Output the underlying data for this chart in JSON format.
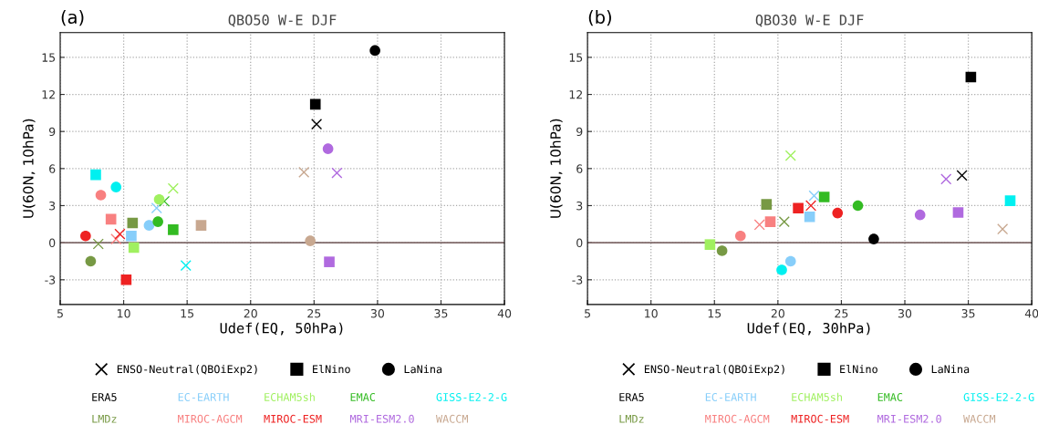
{
  "chart_data": [
    {
      "type": "scatter",
      "title": "QBO50 W-E DJF",
      "xlabel": "Udef(EQ, 50hPa)",
      "ylabel": "U(60N, 10hPa)",
      "annotations": [
        "(a)"
      ],
      "xlim": [
        5,
        40
      ],
      "xticks": [
        5,
        10,
        15,
        20,
        25,
        30,
        35,
        40
      ],
      "ylim": [
        -5,
        17
      ],
      "yticks": [
        -3,
        0,
        3,
        6,
        9,
        12,
        15
      ],
      "grid": true,
      "legend": "bottom",
      "ref_lines": [
        {
          "axis": "y",
          "value": 0,
          "color": "#806a6a"
        }
      ],
      "series": [
        {
          "name": "ENSO-Neutral(QBOiExp2)",
          "marker": "cross",
          "color": "#000000",
          "x": [
            25.2,
            12.6,
            13.9,
            13.2,
            14.9,
            8.0,
            9.4,
            9.7,
            26.8,
            24.2
          ],
          "values": [
            9.6,
            2.8,
            4.4,
            3.35,
            -1.85,
            -0.1,
            0.3,
            0.7,
            5.65,
            5.7
          ],
          "colors": [
            "#000000",
            "#87cefa",
            "#a0f060",
            "#33bb22",
            "#00f0f0",
            "#779944",
            "#f88080",
            "#ee2222",
            "#b06adf",
            "#c8a890"
          ]
        },
        {
          "name": "ElNino",
          "marker": "square",
          "color": "#000000",
          "x": [
            25.1,
            10.6,
            10.8,
            13.9,
            7.8,
            10.7,
            9.0,
            10.2,
            26.2,
            16.1
          ],
          "values": [
            11.2,
            0.55,
            -0.4,
            1.05,
            5.5,
            1.6,
            1.9,
            -3.0,
            -1.55,
            1.4
          ],
          "colors": [
            "#000000",
            "#87cefa",
            "#a0f060",
            "#33bb22",
            "#00f0f0",
            "#779944",
            "#f88080",
            "#ee2222",
            "#b06adf",
            "#c8a890"
          ]
        },
        {
          "name": "LaNina",
          "marker": "circle",
          "color": "#000000",
          "x": [
            29.8,
            12.0,
            12.8,
            12.7,
            9.4,
            7.4,
            8.2,
            7.0,
            26.1,
            24.7
          ],
          "values": [
            15.55,
            1.4,
            3.5,
            1.7,
            4.5,
            -1.5,
            3.85,
            0.55,
            7.6,
            0.15
          ],
          "colors": [
            "#000000",
            "#87cefa",
            "#a0f060",
            "#33bb22",
            "#00f0f0",
            "#779944",
            "#f88080",
            "#ee2222",
            "#b06adf",
            "#c8a890"
          ]
        },
        {
          "name": "ERA5",
          "color": "#000000",
          "marker": "none"
        },
        {
          "name": "EC-EARTH",
          "color": "#87cefa",
          "marker": "none"
        },
        {
          "name": "ECHAM5sh",
          "color": "#a0f060",
          "marker": "none"
        },
        {
          "name": "EMAC",
          "color": "#33bb22",
          "marker": "none"
        },
        {
          "name": "GISS-E2-2-G",
          "color": "#00f0f0",
          "marker": "none"
        },
        {
          "name": "LMDz",
          "color": "#779944",
          "marker": "none"
        },
        {
          "name": "MIROC-AGCM",
          "color": "#f88080",
          "marker": "none"
        },
        {
          "name": "MIROC-ESM",
          "color": "#ee2222",
          "marker": "none"
        },
        {
          "name": "MRI-ESM2.0",
          "color": "#b06adf",
          "marker": "none"
        },
        {
          "name": "WACCM",
          "color": "#c8a890",
          "marker": "none"
        }
      ]
    },
    {
      "type": "scatter",
      "title": "QBO30 W-E DJF",
      "xlabel": "Udef(EQ, 30hPa)",
      "ylabel": "U(60N, 10hPa)",
      "annotations": [
        "(b)"
      ],
      "xlim": [
        5,
        40
      ],
      "xticks": [
        5,
        10,
        15,
        20,
        25,
        30,
        35,
        40
      ],
      "ylim": [
        -5,
        17
      ],
      "yticks": [
        -3,
        0,
        3,
        6,
        9,
        12,
        15
      ],
      "grid": true,
      "legend": "bottom",
      "ref_lines": [
        {
          "axis": "y",
          "value": 0,
          "color": "#806a6a"
        }
      ],
      "series": [
        {
          "name": "ENSO-Neutral(QBOiExp2)",
          "marker": "cross",
          "color": "#000000",
          "x": [
            34.5,
            22.85,
            21.0,
            null,
            null,
            20.5,
            18.55,
            22.6,
            33.25,
            37.7
          ],
          "values": [
            5.45,
            3.8,
            7.05,
            null,
            null,
            1.7,
            1.45,
            3.0,
            5.15,
            1.1
          ],
          "colors": [
            "#000000",
            "#87cefa",
            "#a0f060",
            "#33bb22",
            "#00f0f0",
            "#779944",
            "#f88080",
            "#ee2222",
            "#b06adf",
            "#c8a890"
          ]
        },
        {
          "name": "ElNino",
          "marker": "square",
          "color": "#000000",
          "x": [
            35.2,
            22.5,
            14.65,
            23.65,
            38.3,
            19.1,
            19.4,
            21.6,
            34.2,
            null
          ],
          "values": [
            13.4,
            2.1,
            -0.15,
            3.7,
            3.4,
            3.1,
            1.7,
            2.8,
            2.45,
            null
          ],
          "colors": [
            "#000000",
            "#87cefa",
            "#a0f060",
            "#33bb22",
            "#00f0f0",
            "#779944",
            "#f88080",
            "#ee2222",
            "#b06adf",
            "#c8a890"
          ]
        },
        {
          "name": "LaNina",
          "marker": "circle",
          "color": "#000000",
          "x": [
            27.55,
            21.0,
            null,
            26.3,
            20.3,
            15.6,
            17.05,
            24.7,
            31.2,
            null
          ],
          "values": [
            0.3,
            -1.5,
            null,
            3.0,
            -2.2,
            -0.65,
            0.55,
            2.4,
            2.25,
            null
          ],
          "colors": [
            "#000000",
            "#87cefa",
            "#a0f060",
            "#33bb22",
            "#00f0f0",
            "#779944",
            "#f88080",
            "#ee2222",
            "#b06adf",
            "#c8a890"
          ]
        },
        {
          "name": "ERA5",
          "color": "#000000",
          "marker": "none"
        },
        {
          "name": "EC-EARTH",
          "color": "#87cefa",
          "marker": "none"
        },
        {
          "name": "ECHAM5sh",
          "color": "#a0f060",
          "marker": "none"
        },
        {
          "name": "EMAC",
          "color": "#33bb22",
          "marker": "none"
        },
        {
          "name": "GISS-E2-2-G",
          "color": "#00f0f0",
          "marker": "none"
        },
        {
          "name": "LMDz",
          "color": "#779944",
          "marker": "none"
        },
        {
          "name": "MIROC-AGCM",
          "color": "#f88080",
          "marker": "none"
        },
        {
          "name": "MIROC-ESM",
          "color": "#ee2222",
          "marker": "none"
        },
        {
          "name": "MRI-ESM2.0",
          "color": "#b06adf",
          "marker": "none"
        },
        {
          "name": "WACCM",
          "color": "#c8a890",
          "marker": "none"
        }
      ]
    }
  ]
}
